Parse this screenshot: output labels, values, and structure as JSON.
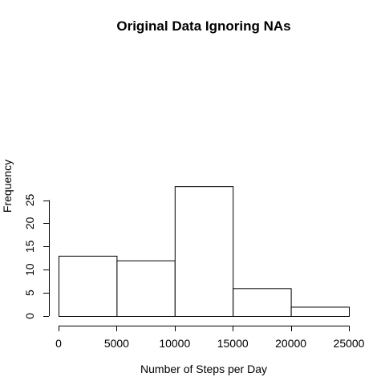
{
  "chart_data": {
    "type": "bar",
    "title": "Original Data Ignoring NAs",
    "xlabel": "Number of Steps per Day",
    "ylabel": "Frequency",
    "bins": [
      {
        "x0": 0,
        "x1": 5000,
        "count": 13
      },
      {
        "x0": 5000,
        "x1": 10000,
        "count": 12
      },
      {
        "x0": 10000,
        "x1": 15000,
        "count": 28
      },
      {
        "x0": 15000,
        "x1": 20000,
        "count": 6
      },
      {
        "x0": 20000,
        "x1": 25000,
        "count": 2
      }
    ],
    "xlim": [
      0,
      25000
    ],
    "ylim": [
      0,
      28
    ],
    "x_ticks": [
      0,
      5000,
      10000,
      15000,
      20000,
      25000
    ],
    "y_ticks": [
      0,
      5,
      10,
      15,
      20,
      25
    ],
    "grid": false,
    "colors": {
      "bar_fill": "#ffffff",
      "bar_stroke": "#000000"
    }
  }
}
